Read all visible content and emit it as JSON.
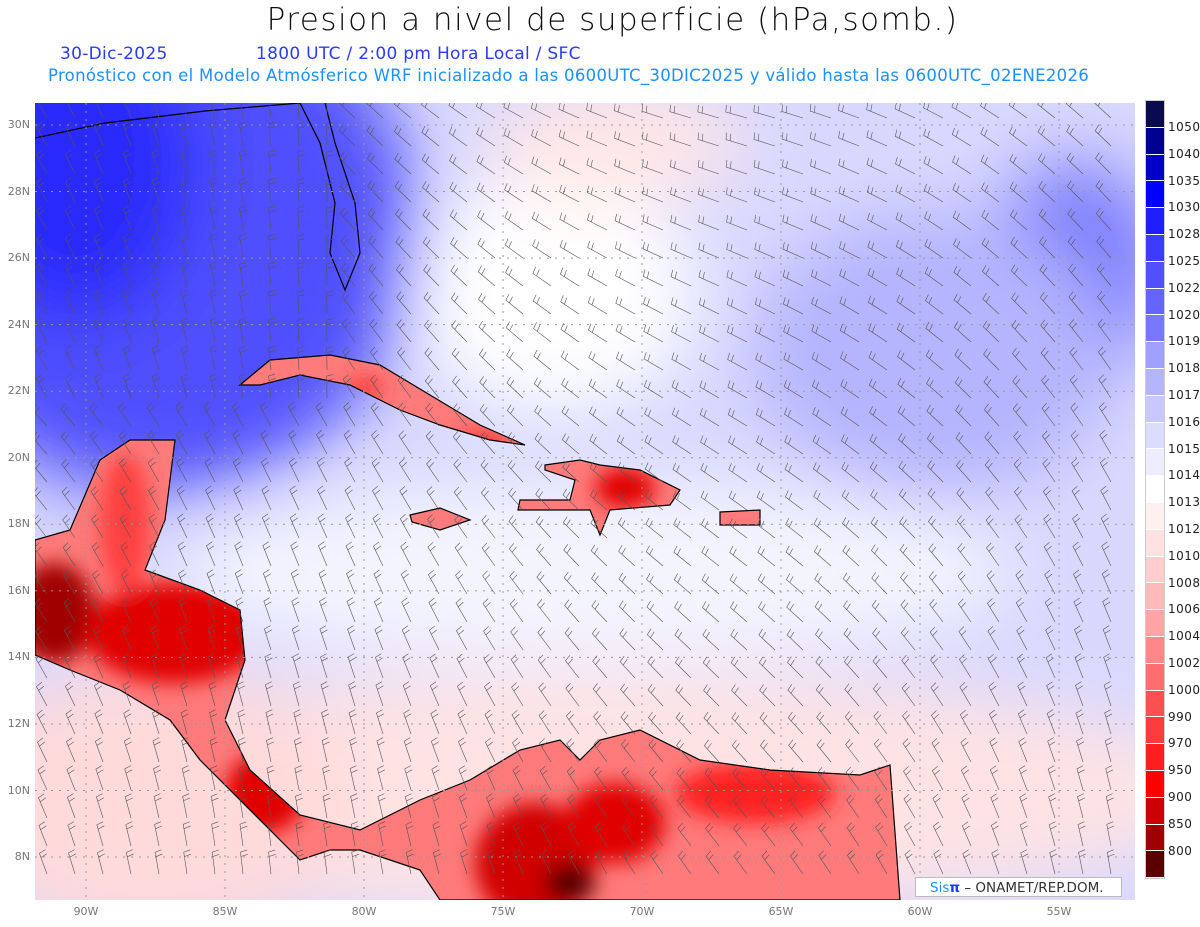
{
  "header": {
    "title": "Presion a nivel de superficie (hPa,somb.)",
    "date": "30-Dic-2025",
    "time": "1800 UTC / 2:00 pm Hora Local / SFC",
    "forecast": "Pronóstico con el Modelo Atmósferico WRF inicializado a las 0600UTC_30DIC2025 y válido hasta las  0600UTC_02ENE2026"
  },
  "map": {
    "lat_labels": [
      "30N",
      "28N",
      "26N",
      "24N",
      "22N",
      "20N",
      "18N",
      "16N",
      "14N",
      "12N",
      "10N",
      "8N"
    ],
    "lon_labels": [
      "90W",
      "85W",
      "80W",
      "75W",
      "70W",
      "65W",
      "60W",
      "55W"
    ]
  },
  "colorbar": {
    "labels": [
      "1050",
      "1040",
      "1035",
      "1030",
      "1028",
      "1025",
      "1022",
      "1020",
      "1019",
      "1018",
      "1017",
      "1016",
      "1015",
      "1014",
      "1013",
      "1012",
      "1010",
      "1008",
      "1006",
      "1004",
      "1002",
      "1000",
      "990",
      "970",
      "950",
      "900",
      "850",
      "800"
    ],
    "colors": [
      "#0a0a50",
      "#000090",
      "#0000c8",
      "#0000ff",
      "#1e1eff",
      "#3c3cff",
      "#5050ff",
      "#6464ff",
      "#7878ff",
      "#a0a0ff",
      "#b4b4ff",
      "#c8c8ff",
      "#dcdcff",
      "#ededff",
      "#ffffff",
      "#fff0f0",
      "#ffe1e1",
      "#ffcdcd",
      "#ffb9b9",
      "#ffa5a5",
      "#ff8787",
      "#ff6e6e",
      "#ff5050",
      "#ff3c3c",
      "#ff1e1e",
      "#ff0000",
      "#cc0000",
      "#a00000",
      "#5a0000"
    ]
  },
  "credit": {
    "sis": "Sis",
    "pi": "π",
    "rest": " –  ONAMET/REP.DOM."
  }
}
